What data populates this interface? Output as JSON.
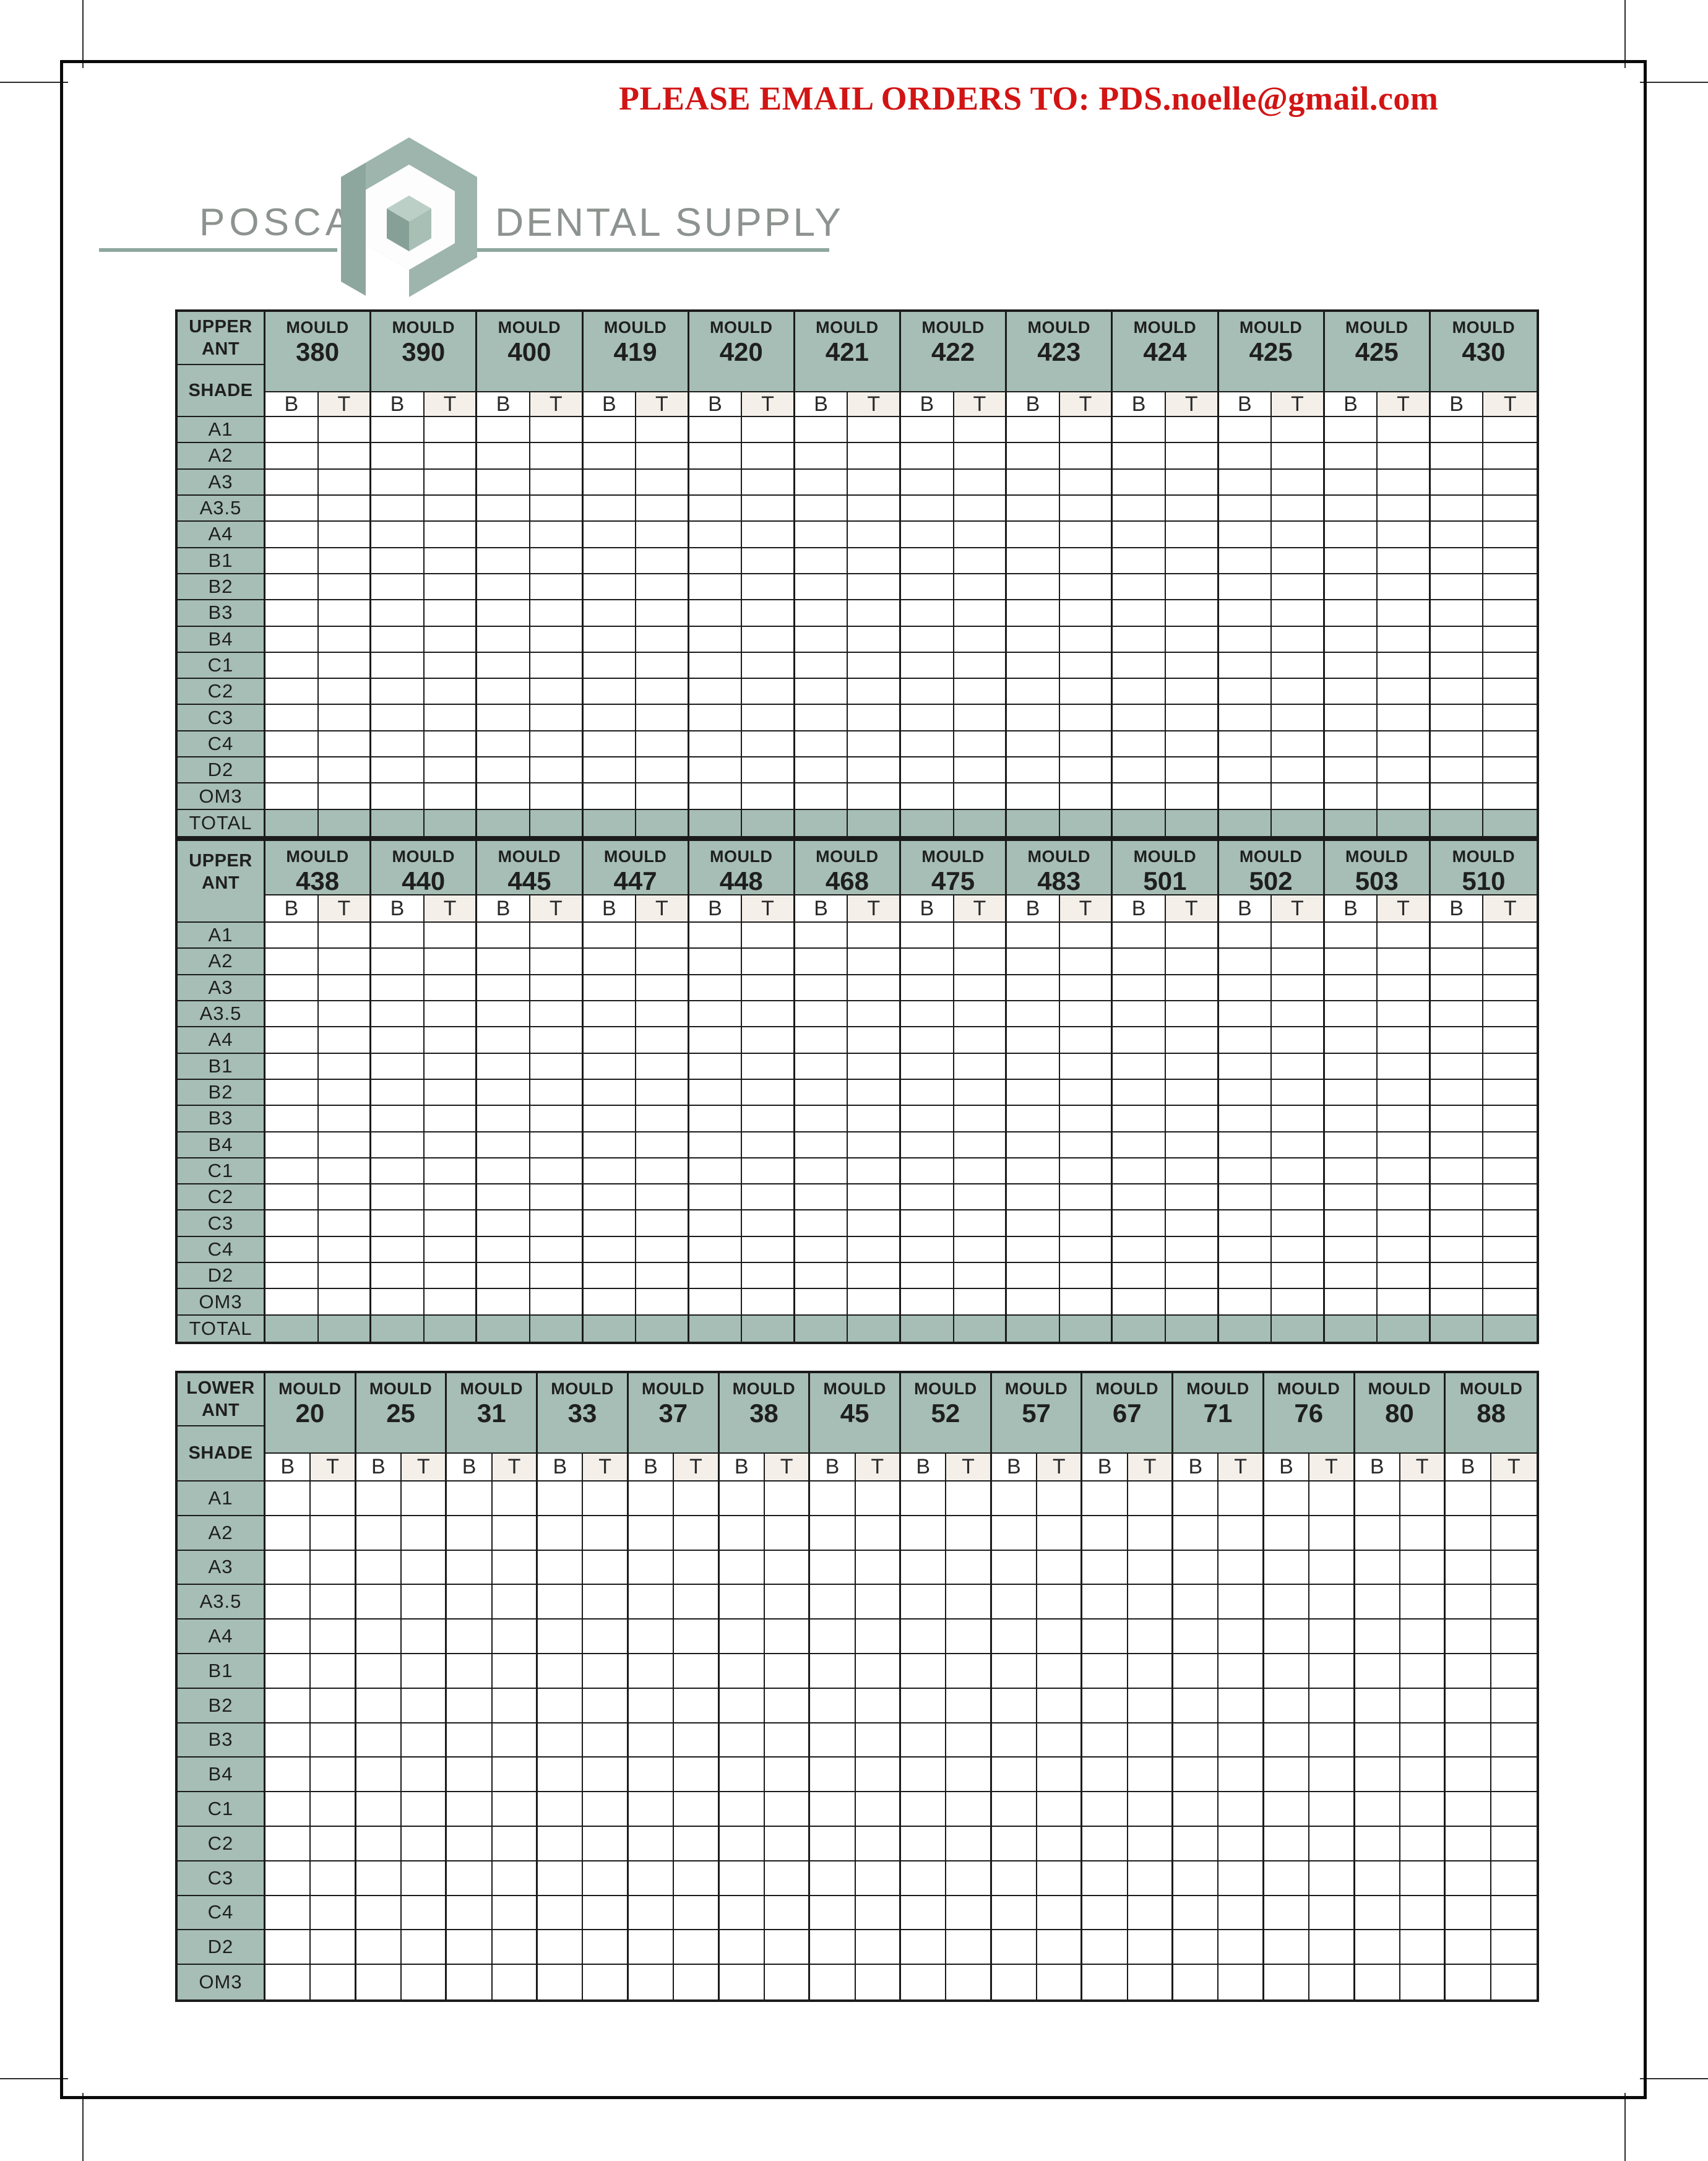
{
  "banner": {
    "text": "PLEASE EMAIL ORDERS TO: PDS.noelle@gmail.com"
  },
  "logo": {
    "word_left": "POSCA",
    "word_right": "DENTAL SUPPLY"
  },
  "colors": {
    "table_header_green": "#a6beb5",
    "t_column_pink": "#f4efe9",
    "banner_red": "#d21414",
    "grid_ink": "#1b1b1b",
    "logo_green": "#9db5ac",
    "logo_dark_green": "#8ea79e",
    "logo_light_green": "#bbcfc7",
    "logo_text_gray": "#8d938f"
  },
  "bt_headers": [
    "B",
    "T"
  ],
  "tables": [
    {
      "region_lines": [
        "UPPER",
        "ANT"
      ],
      "shade_label": "SHADE",
      "show_shade_label": true,
      "mould_label": "MOULD",
      "total_label": "TOTAL",
      "has_total": true,
      "moulds": [
        "380",
        "390",
        "400",
        "419",
        "420",
        "421",
        "422",
        "423",
        "424",
        "425",
        "425",
        "430"
      ],
      "shades": [
        "A1",
        "A2",
        "A3",
        "A3.5",
        "A4",
        "B1",
        "B2",
        "B3",
        "B4",
        "C1",
        "C2",
        "C3",
        "C4",
        "D2",
        "OM3"
      ]
    },
    {
      "region_lines": [
        "UPPER",
        "ANT"
      ],
      "shade_label": "",
      "show_shade_label": false,
      "mould_label": "MOULD",
      "total_label": "TOTAL",
      "has_total": true,
      "moulds": [
        "438",
        "440",
        "445",
        "447",
        "448",
        "468",
        "475",
        "483",
        "501",
        "502",
        "503",
        "510"
      ],
      "shades": [
        "A1",
        "A2",
        "A3",
        "A3.5",
        "A4",
        "B1",
        "B2",
        "B3",
        "B4",
        "C1",
        "C2",
        "C3",
        "C4",
        "D2",
        "OM3"
      ]
    },
    {
      "region_lines": [
        "LOWER",
        "ANT"
      ],
      "shade_label": "SHADE",
      "show_shade_label": true,
      "mould_label": "MOULD",
      "total_label": "TOTAL",
      "has_total": false,
      "moulds": [
        "20",
        "25",
        "31",
        "33",
        "37",
        "38",
        "45",
        "52",
        "57",
        "67",
        "71",
        "76",
        "80",
        "88"
      ],
      "shades": [
        "A1",
        "A2",
        "A3",
        "A3.5",
        "A4",
        "B1",
        "B2",
        "B3",
        "B4",
        "C1",
        "C2",
        "C3",
        "C4",
        "D2",
        "OM3"
      ]
    }
  ]
}
